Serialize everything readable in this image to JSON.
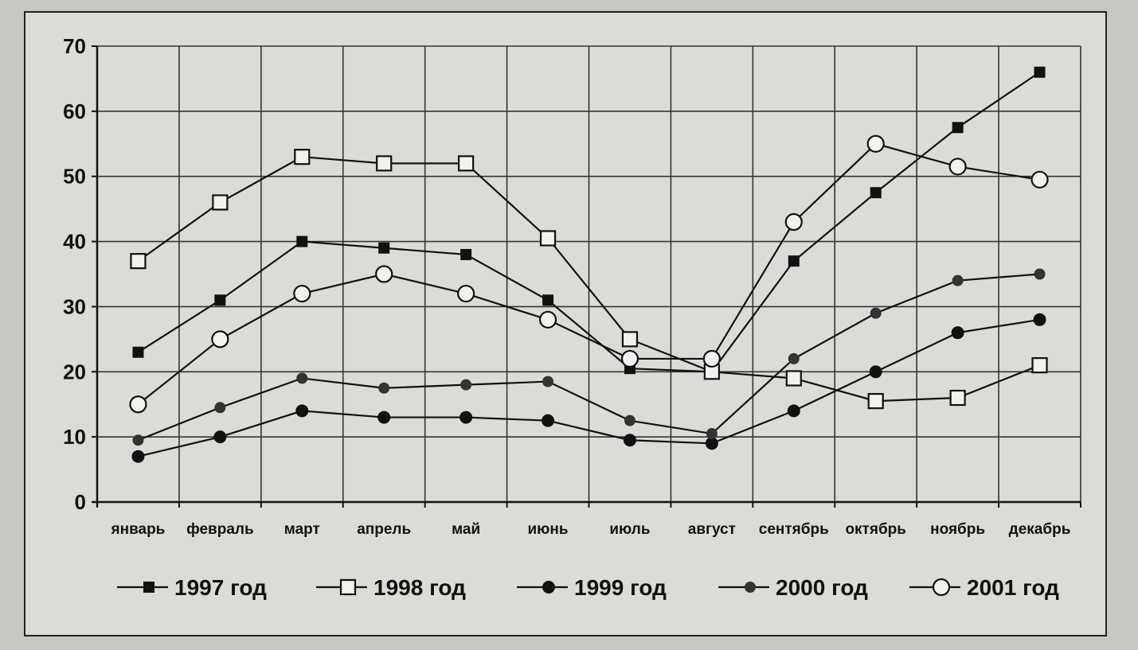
{
  "chart_data": {
    "type": "line",
    "categories": [
      "январь",
      "февраль",
      "март",
      "апрель",
      "май",
      "июнь",
      "июль",
      "август",
      "сентябрь",
      "октябрь",
      "ноябрь",
      "декабрь"
    ],
    "ylim": [
      0,
      70
    ],
    "yticks": [
      0,
      10,
      20,
      30,
      40,
      50,
      60,
      70
    ],
    "grid": true,
    "legend_position": "bottom",
    "series": [
      {
        "name": "1997 год",
        "marker": "filled-square",
        "values": [
          23,
          31,
          40,
          39,
          38,
          31,
          20.5,
          20,
          37,
          47.5,
          57.5,
          66
        ]
      },
      {
        "name": "1998 год",
        "marker": "open-square",
        "values": [
          37,
          46,
          53,
          52,
          52,
          40.5,
          25,
          20,
          19,
          15.5,
          16,
          21
        ]
      },
      {
        "name": "1999 год",
        "marker": "filled-circle",
        "values": [
          7,
          10,
          14,
          13,
          13,
          12.5,
          9.5,
          9,
          14,
          20,
          26,
          28
        ]
      },
      {
        "name": "2000 год",
        "marker": "small-filled-circle",
        "values": [
          9.5,
          14.5,
          19,
          17.5,
          18,
          18.5,
          12.5,
          10.5,
          22,
          29,
          34,
          35
        ]
      },
      {
        "name": "2001 год",
        "marker": "open-circle",
        "values": [
          15,
          25,
          32,
          35,
          32,
          28,
          22,
          22,
          43,
          55,
          51.5,
          49.5
        ]
      }
    ]
  }
}
